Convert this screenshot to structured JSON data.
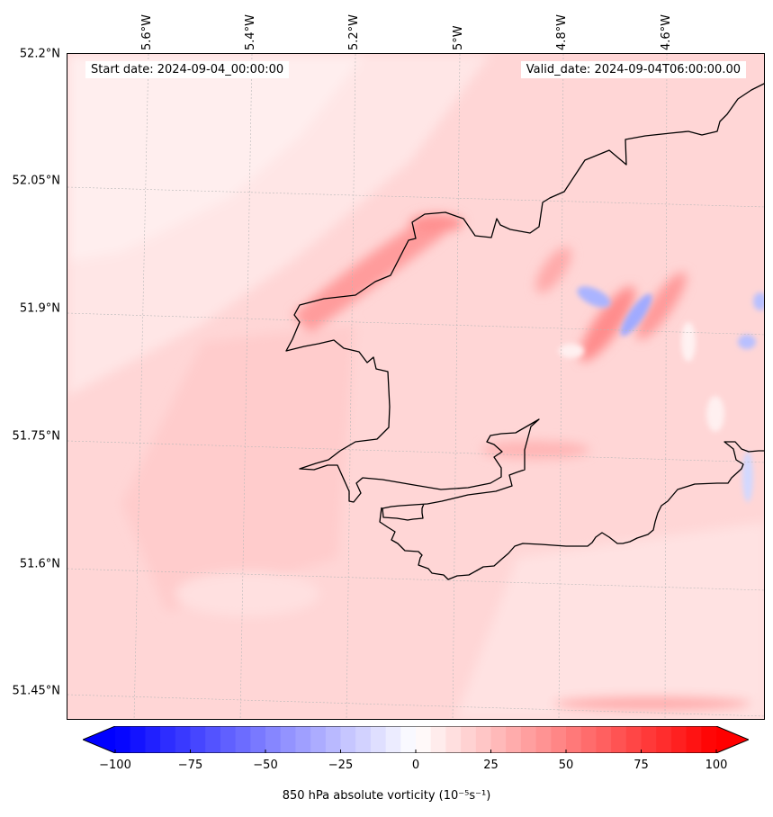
{
  "map": {
    "start_date": "Start date: 2024-09-04_00:00:00",
    "valid_date": "Valid_date: 2024-09-04T06:00:00.00",
    "lat_labels": [
      "52.2°N",
      "52.05°N",
      "51.9°N",
      "51.75°N",
      "51.6°N",
      "51.45°N"
    ],
    "lon_labels": [
      "5.6°W",
      "5.4°W",
      "5.2°W",
      "5°W",
      "4.8°W",
      "4.6°W"
    ],
    "colors": {
      "background": "#ffd9d9",
      "coast": "#000000",
      "grid": "#b0b0b0"
    }
  },
  "colorbar": {
    "label": "850 hPa absolute vorticity (10⁻⁵s⁻¹)",
    "min": -100,
    "max": 100,
    "step": 5,
    "ticks": [
      "−100",
      "−75",
      "−50",
      "−25",
      "0",
      "25",
      "50",
      "75",
      "100"
    ],
    "tick_values": [
      -100,
      -75,
      -50,
      -25,
      0,
      25,
      50,
      75,
      100
    ],
    "cmap": "bwr"
  }
}
